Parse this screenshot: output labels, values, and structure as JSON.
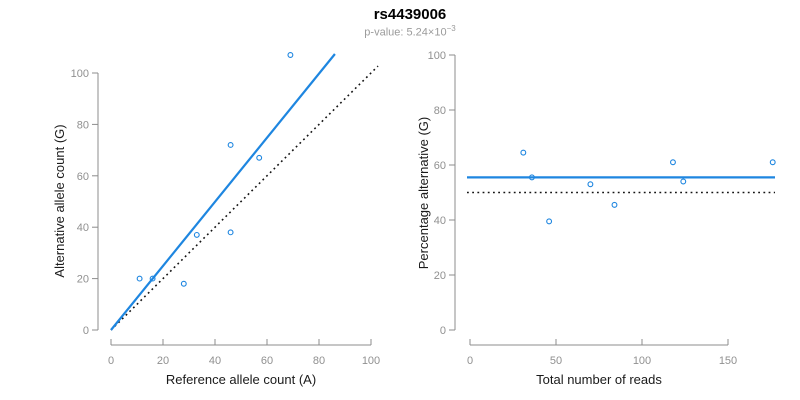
{
  "header": {
    "title": "rs4439006",
    "pvalue_prefix": "p-value: 5.24×10",
    "pvalue_exponent": "−3"
  },
  "colors": {
    "accent_blue": "#1E86E0",
    "dotted_black": "#141414",
    "axis_gray": "#8C8C8C",
    "tick_label_gray": "#909090",
    "axis_title_dark": "#1A1A1A",
    "subtitle_gray": "#9B9B9B"
  },
  "chart_data": [
    {
      "type": "scatter",
      "panel": "left",
      "xlabel": "Reference allele count (A)",
      "ylabel": "Alternative allele count (G)",
      "xlim": [
        0,
        100
      ],
      "ylim": [
        0,
        100
      ],
      "xticks": [
        0,
        20,
        40,
        60,
        80,
        100
      ],
      "yticks": [
        0,
        20,
        40,
        60,
        80,
        100
      ],
      "points": [
        [
          11,
          20
        ],
        [
          16,
          20
        ],
        [
          28,
          18
        ],
        [
          33,
          37
        ],
        [
          46,
          38
        ],
        [
          46,
          72
        ],
        [
          57,
          67
        ],
        [
          69,
          107
        ]
      ],
      "fit_line": {
        "style": "solid",
        "slope": 1.247,
        "intercept": 0
      },
      "identity_line": {
        "style": "dotted",
        "slope": 1,
        "intercept": 0
      }
    },
    {
      "type": "scatter",
      "panel": "right",
      "xlabel": "Total number of reads",
      "ylabel": "Percentage alternative (G)",
      "xlim": [
        0,
        150
      ],
      "ylim": [
        0,
        100
      ],
      "xticks": [
        0,
        50,
        100,
        150
      ],
      "yticks": [
        0,
        20,
        40,
        60,
        80,
        100
      ],
      "points": [
        [
          31,
          64.5
        ],
        [
          36,
          55.5
        ],
        [
          46,
          39.5
        ],
        [
          70,
          53
        ],
        [
          84,
          45.5
        ],
        [
          118,
          61
        ],
        [
          124,
          54
        ],
        [
          176,
          61
        ]
      ],
      "fit_line": {
        "style": "solid",
        "value": 55.5
      },
      "identity_line": {
        "style": "dotted",
        "value": 50
      }
    }
  ]
}
